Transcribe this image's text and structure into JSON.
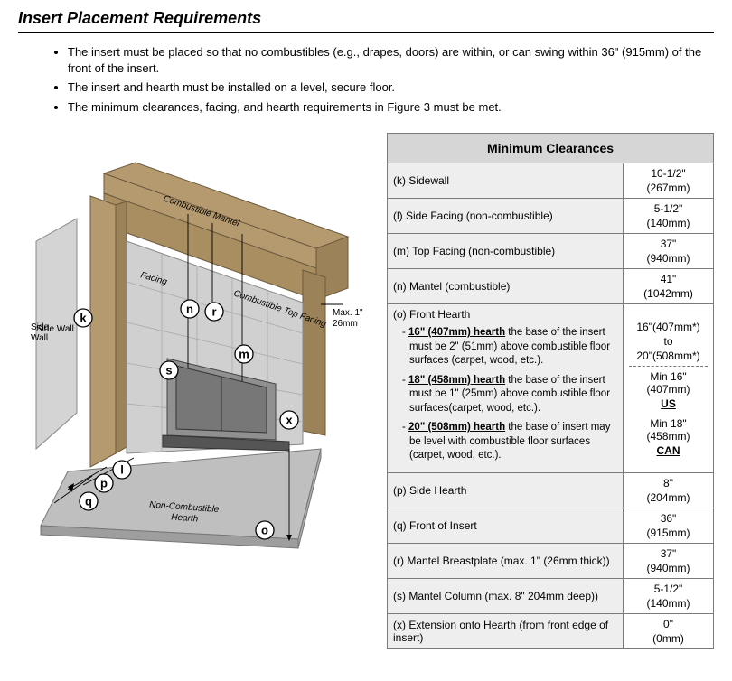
{
  "title": "Insert Placement Requirements",
  "bullets": [
    "The insert must be placed so that no combustibles (e.g., drapes, doors) are within, or can swing within 36\" (915mm) of the front of the insert.",
    "The insert and hearth must be installed on a level, secure floor.",
    "The minimum clearances, facing, and hearth requirements in Figure 3 must be met."
  ],
  "diagram": {
    "colors": {
      "wood": "#b59a6f",
      "wood_dark": "#9c8258",
      "facing": "#d0d0d0",
      "facing_line": "#9a9a9a",
      "hearth": "#bfbfbf",
      "insert": "#909090",
      "insert_dark": "#6e6e6e",
      "sidewall": "#d4d4d4",
      "outline": "#333333"
    },
    "labels": {
      "mantel": "Combustible Mantel",
      "topfacing": "Combustible Top Facing",
      "facing": "Facing",
      "sidewall": "Side Wall",
      "hearth": "Non-Combustible Hearth",
      "max1": "Max. 1\"",
      "max1b": "26mm"
    },
    "callouts": {
      "k": "k",
      "l": "l",
      "m": "m",
      "n": "n",
      "o": "o",
      "p": "p",
      "q": "q",
      "r": "r",
      "s": "s",
      "x": "x"
    }
  },
  "table": {
    "header": "Minimum Clearances",
    "rows": [
      {
        "label": "(k) Sidewall",
        "val": "10-1/2\"\n(267mm)"
      },
      {
        "label": "(l) Side Facing (non-combustible)",
        "val": "5-1/2\"\n(140mm)"
      },
      {
        "label": "(m) Top Facing (non-combustible)",
        "val": "37\"\n(940mm)"
      },
      {
        "label": "(n) Mantel (combustible)",
        "val": "41\"\n(1042mm)"
      }
    ],
    "hearth_row": {
      "label": "(o) Front Hearth",
      "items": [
        {
          "lead": "16\" (407mm) hearth",
          "rest": " the base of the insert must be 2\" (51mm) above combustible floor surfaces (carpet, wood, etc.)."
        },
        {
          "lead": "18\" (458mm) hearth",
          "rest": " the base of the insert must be 1\" (25mm) above combustible floor surfaces(carpet, wood, etc.)."
        },
        {
          "lead": "20\" (508mm) hearth",
          "rest": " the base of insert may be level with combustible floor surfaces (carpet, wood, etc.)."
        }
      ],
      "val_top": [
        "16\"(407mm*)",
        "to",
        "20\"(508mm*)"
      ],
      "val_bot": [
        "Min 16\"(407mm)",
        "US",
        "Min 18\"(458mm)",
        "CAN"
      ]
    },
    "rows2": [
      {
        "label": "(p) Side Hearth",
        "val": "8\"\n(204mm)"
      },
      {
        "label": "(q) Front of Insert",
        "val": "36\"\n(915mm)"
      },
      {
        "label": "(r) Mantel Breastplate (max. 1\" (26mm thick))",
        "val": "37\"\n(940mm)"
      },
      {
        "label": "(s) Mantel Column (max. 8\" 204mm deep))",
        "val": "5-1/2\"\n(140mm)"
      },
      {
        "label": "(x) Extension onto Hearth (from front edge of insert)",
        "val": "0\"\n(0mm)"
      }
    ]
  }
}
